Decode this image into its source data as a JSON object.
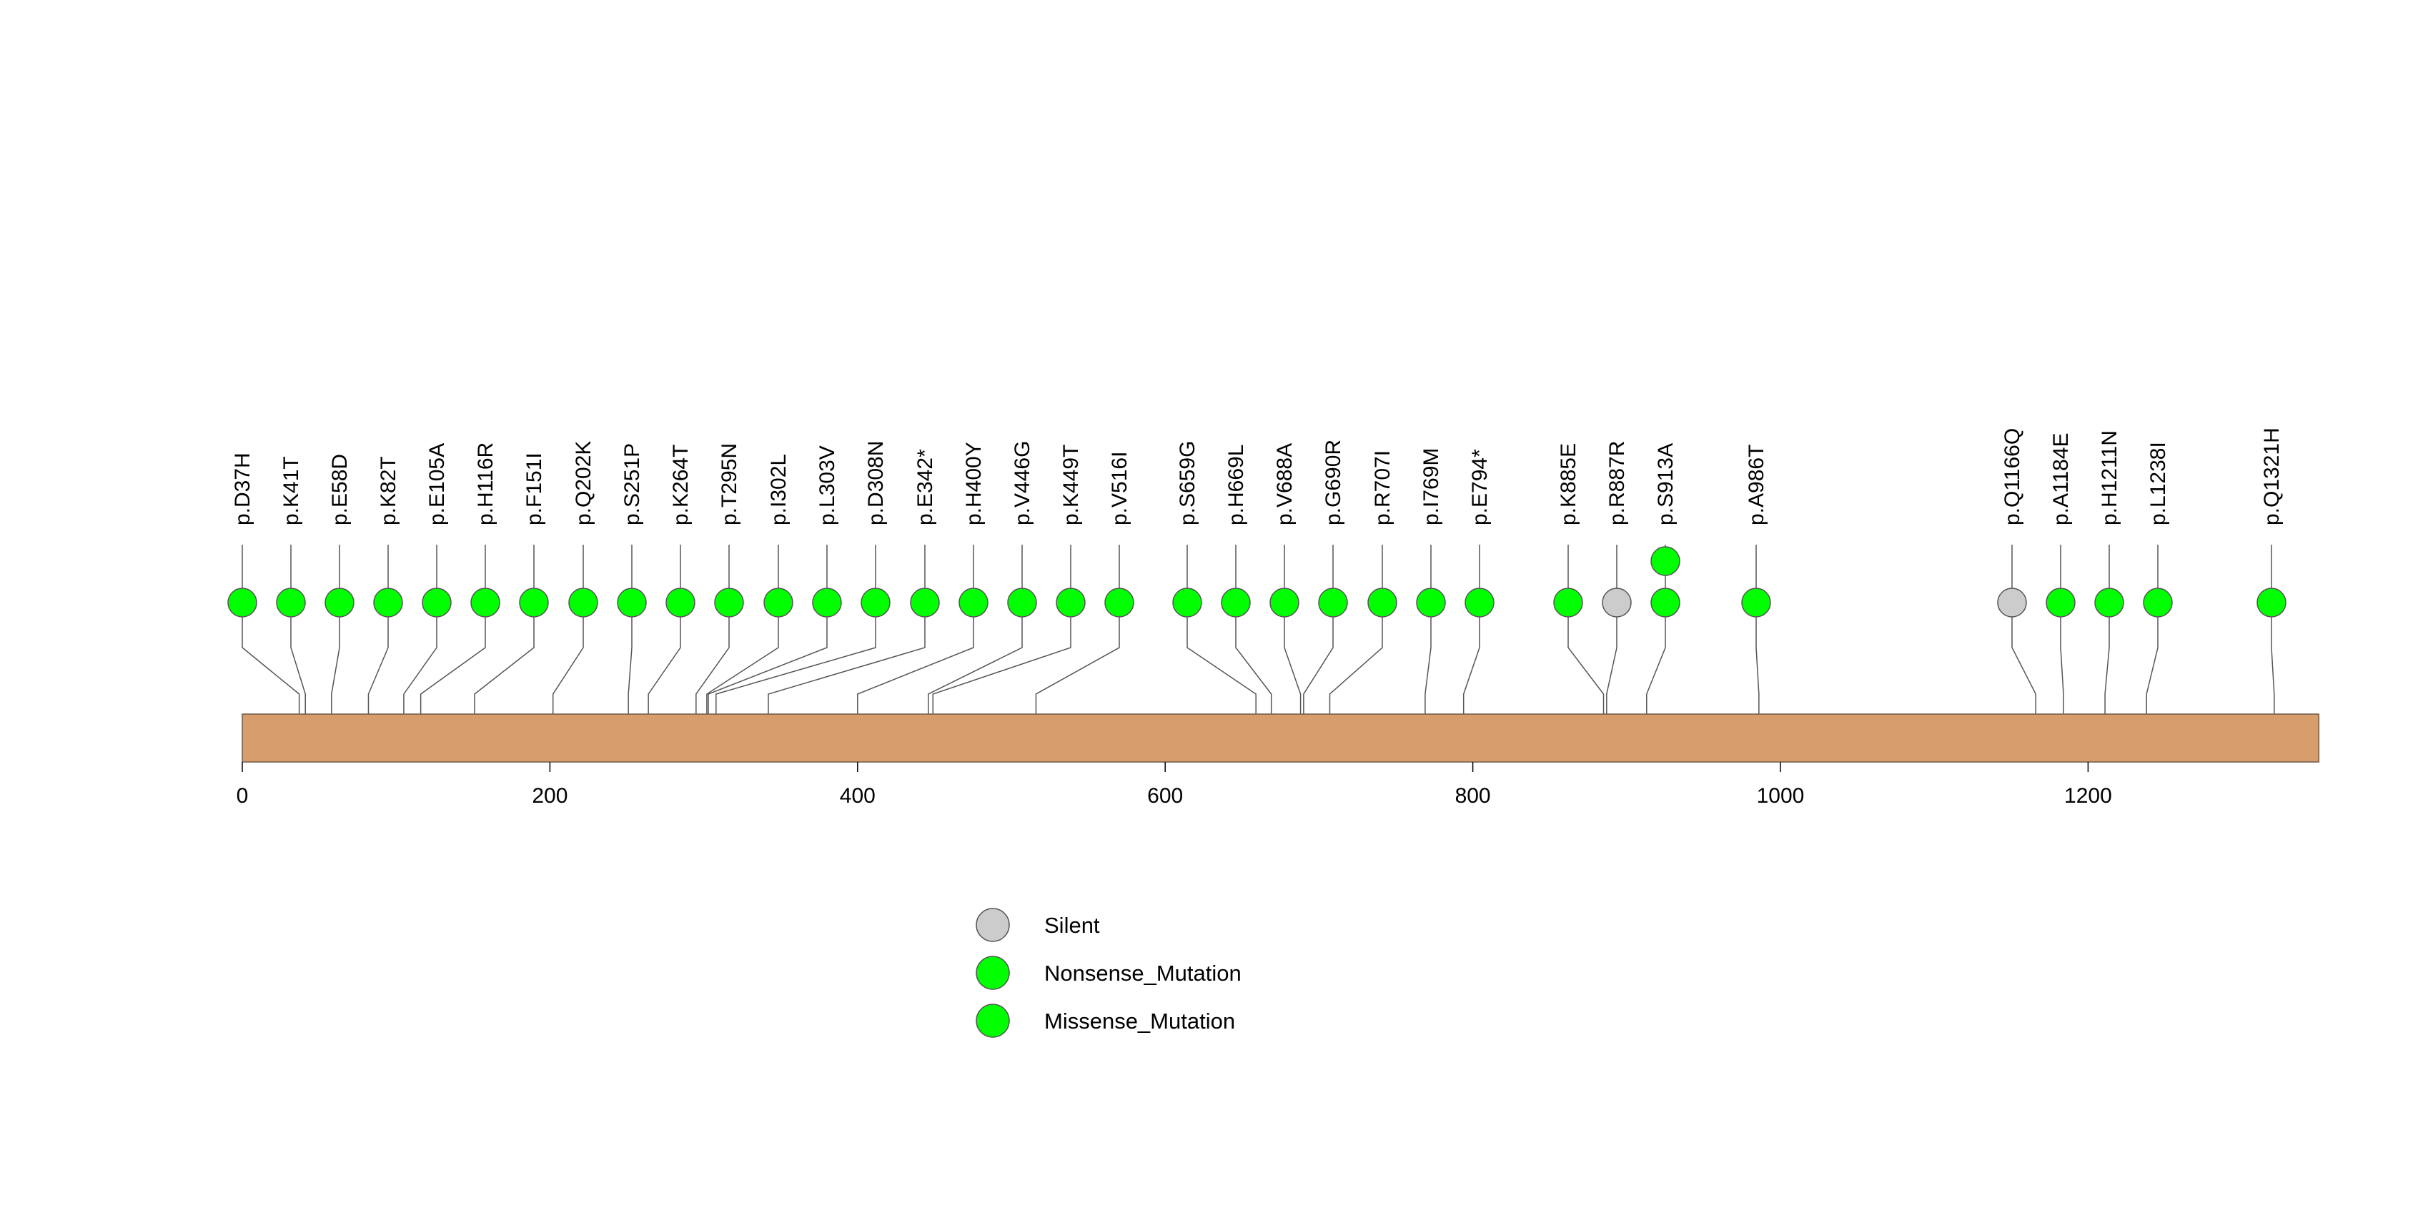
{
  "chart_data": {
    "type": "lollipop",
    "title": "",
    "xlabel": "",
    "ylabel": "",
    "xlim": [
      0,
      1350
    ],
    "x_ticks": [
      "0",
      "200",
      "400",
      "600",
      "800",
      "1000",
      "1200"
    ],
    "tick_values": [
      0,
      200,
      400,
      600,
      800,
      1000,
      1200
    ],
    "protein_length": 1350,
    "colors": {
      "Missense_Mutation": "#00ff00",
      "Nonsense_Mutation": "#00ff00",
      "Silent": "#cccccc",
      "protein_bar": "#d89d6c"
    },
    "legend": {
      "placement": "bottom-center",
      "entries": [
        {
          "label": "Silent",
          "type": "Silent"
        },
        {
          "label": "Nonsense_Mutation",
          "type": "Nonsense_Mutation"
        },
        {
          "label": "Missense_Mutation",
          "type": "Missense_Mutation"
        }
      ]
    },
    "mutations": [
      {
        "label": "p.D37H",
        "position": 37,
        "type": "Missense_Mutation",
        "count": 1
      },
      {
        "label": "p.K41T",
        "position": 41,
        "type": "Missense_Mutation",
        "count": 1
      },
      {
        "label": "p.E58D",
        "position": 58,
        "type": "Missense_Mutation",
        "count": 1
      },
      {
        "label": "p.K82T",
        "position": 82,
        "type": "Missense_Mutation",
        "count": 1
      },
      {
        "label": "p.E105A",
        "position": 105,
        "type": "Missense_Mutation",
        "count": 1
      },
      {
        "label": "p.H116R",
        "position": 116,
        "type": "Missense_Mutation",
        "count": 1
      },
      {
        "label": "p.F151I",
        "position": 151,
        "type": "Missense_Mutation",
        "count": 1
      },
      {
        "label": "p.Q202K",
        "position": 202,
        "type": "Missense_Mutation",
        "count": 1
      },
      {
        "label": "p.S251P",
        "position": 251,
        "type": "Missense_Mutation",
        "count": 1
      },
      {
        "label": "p.K264T",
        "position": 264,
        "type": "Missense_Mutation",
        "count": 1
      },
      {
        "label": "p.T295N",
        "position": 295,
        "type": "Missense_Mutation",
        "count": 1
      },
      {
        "label": "p.I302L",
        "position": 302,
        "type": "Missense_Mutation",
        "count": 1
      },
      {
        "label": "p.L303V",
        "position": 303,
        "type": "Missense_Mutation",
        "count": 1
      },
      {
        "label": "p.D308N",
        "position": 308,
        "type": "Missense_Mutation",
        "count": 1
      },
      {
        "label": "p.E342*",
        "position": 342,
        "type": "Nonsense_Mutation",
        "count": 1
      },
      {
        "label": "p.H400Y",
        "position": 400,
        "type": "Missense_Mutation",
        "count": 1
      },
      {
        "label": "p.V446G",
        "position": 446,
        "type": "Missense_Mutation",
        "count": 1
      },
      {
        "label": "p.K449T",
        "position": 449,
        "type": "Missense_Mutation",
        "count": 1
      },
      {
        "label": "p.V516I",
        "position": 516,
        "type": "Missense_Mutation",
        "count": 1
      },
      {
        "label": "p.S659G",
        "position": 659,
        "type": "Missense_Mutation",
        "count": 1
      },
      {
        "label": "p.H669L",
        "position": 669,
        "type": "Missense_Mutation",
        "count": 1
      },
      {
        "label": "p.V688A",
        "position": 688,
        "type": "Missense_Mutation",
        "count": 1
      },
      {
        "label": "p.G690R",
        "position": 690,
        "type": "Missense_Mutation",
        "count": 1
      },
      {
        "label": "p.R707I",
        "position": 707,
        "type": "Missense_Mutation",
        "count": 1
      },
      {
        "label": "p.I769M",
        "position": 769,
        "type": "Missense_Mutation",
        "count": 1
      },
      {
        "label": "p.E794*",
        "position": 794,
        "type": "Nonsense_Mutation",
        "count": 1
      },
      {
        "label": "p.K885E",
        "position": 885,
        "type": "Missense_Mutation",
        "count": 1
      },
      {
        "label": "p.R887R",
        "position": 887,
        "type": "Silent",
        "count": 1
      },
      {
        "label": "p.S913A",
        "position": 913,
        "type": "Missense_Mutation",
        "count": 2
      },
      {
        "label": "p.A986T",
        "position": 986,
        "type": "Missense_Mutation",
        "count": 1
      },
      {
        "label": "p.Q1166Q",
        "position": 1166,
        "type": "Silent",
        "count": 1
      },
      {
        "label": "p.A1184E",
        "position": 1184,
        "type": "Missense_Mutation",
        "count": 1
      },
      {
        "label": "p.H1211N",
        "position": 1211,
        "type": "Missense_Mutation",
        "count": 1
      },
      {
        "label": "p.L1238I",
        "position": 1238,
        "type": "Missense_Mutation",
        "count": 1
      },
      {
        "label": "p.Q1321H",
        "position": 1321,
        "type": "Missense_Mutation",
        "count": 1
      }
    ]
  }
}
